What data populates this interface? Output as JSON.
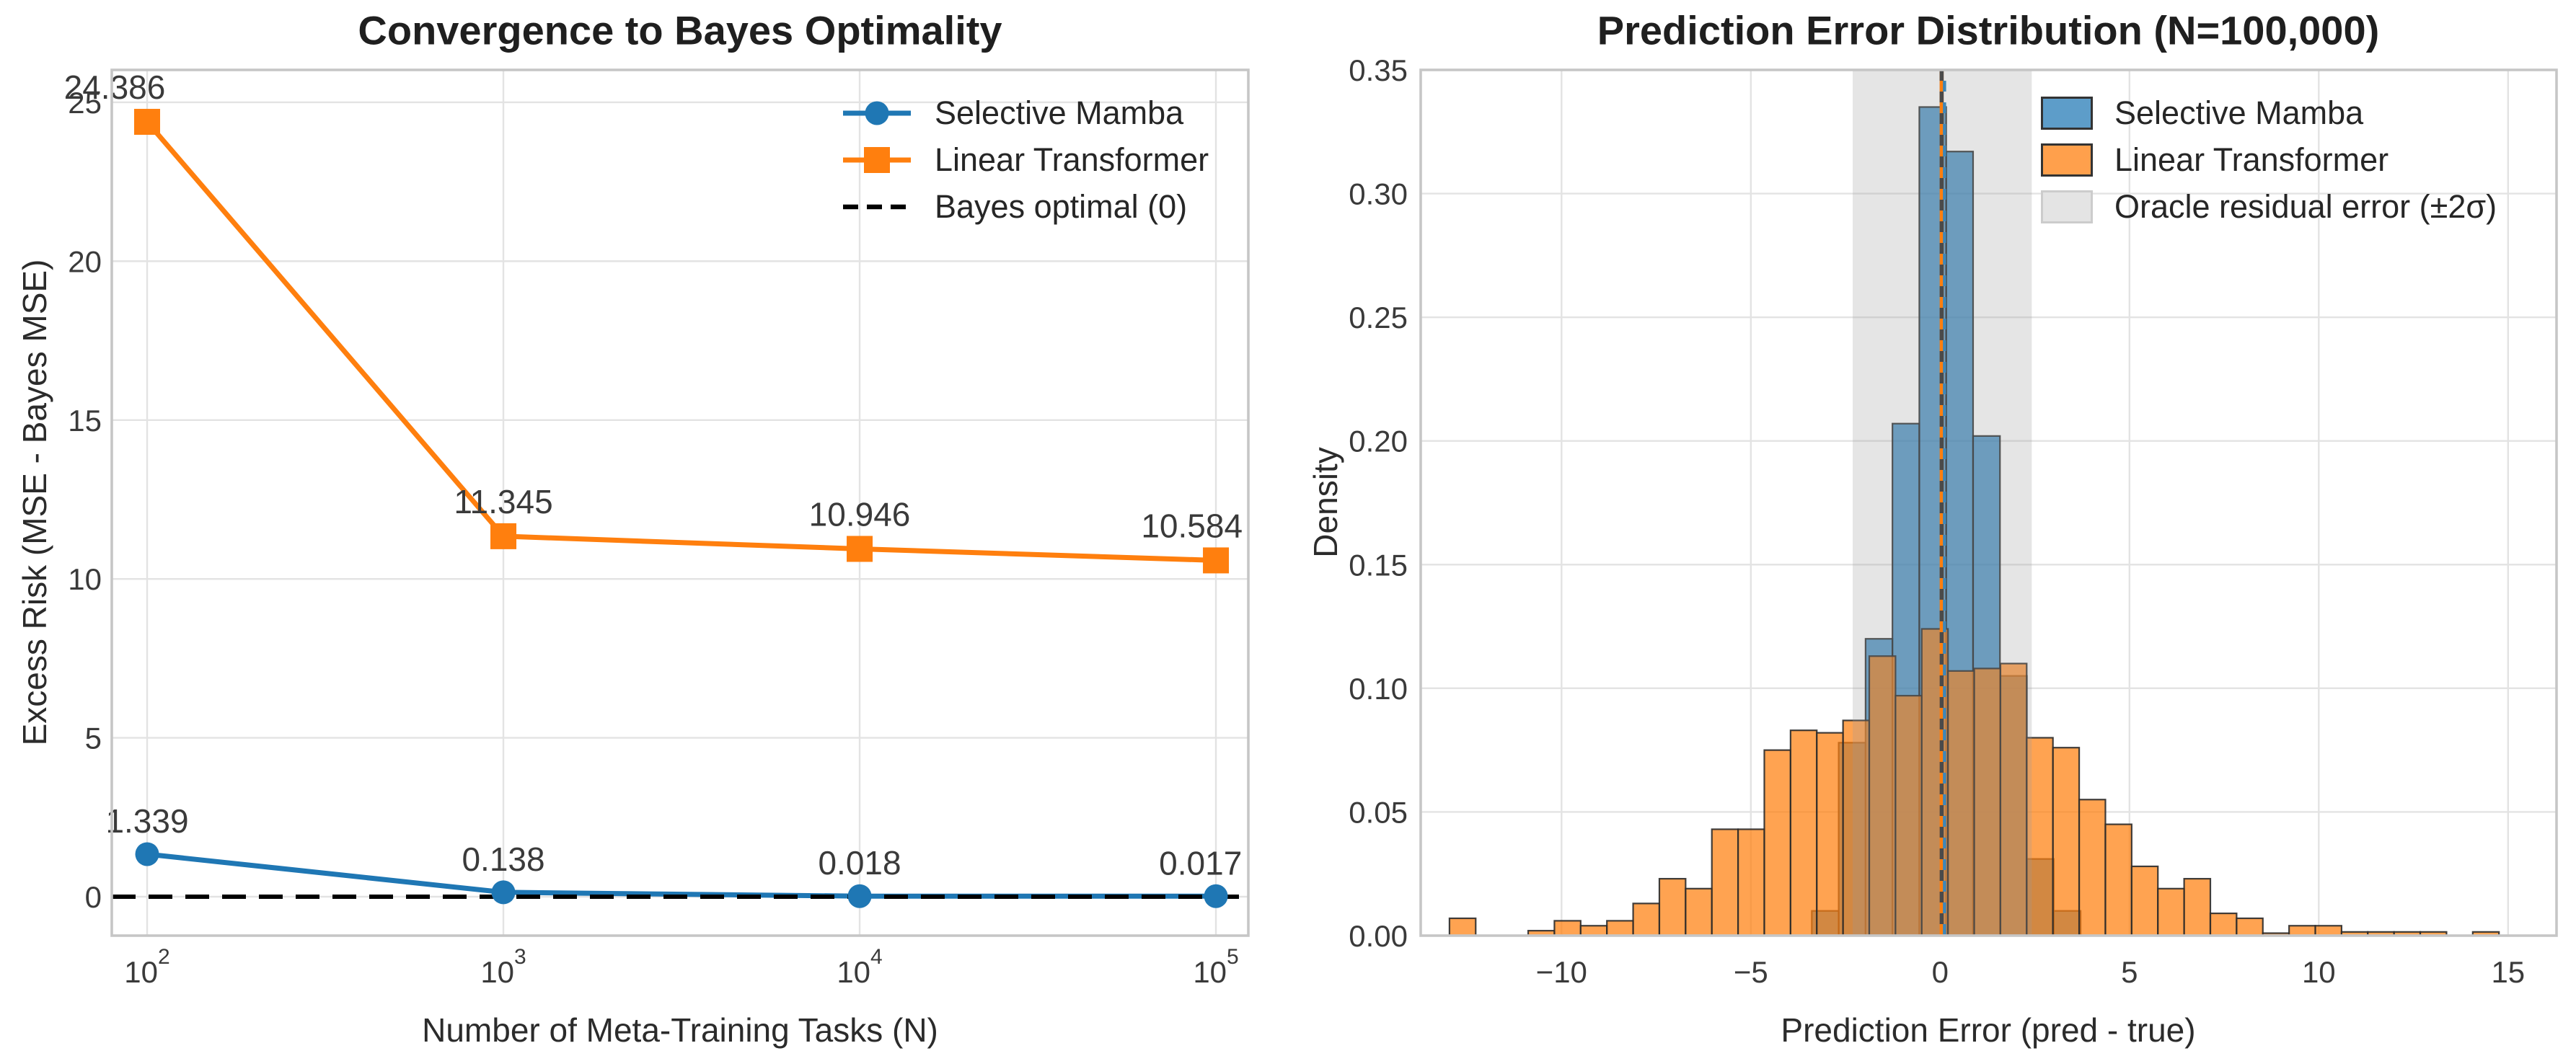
{
  "figure": {
    "background": "#ffffff",
    "grid_color": "#e3e3e3",
    "spine_color": "#c6c6c6",
    "tick_color": "#3a3a3a"
  },
  "chart_data": [
    {
      "type": "line",
      "title": "Convergence to Bayes Optimality",
      "xlabel": "Number of Meta-Training Tasks (N)",
      "ylabel": "Excess Risk (MSE - Bayes MSE)",
      "xscale": "log",
      "x": [
        100,
        1000,
        10000,
        100000
      ],
      "xtick_labels": [
        {
          "mantissa": "10",
          "exp": "2"
        },
        {
          "mantissa": "10",
          "exp": "3"
        },
        {
          "mantissa": "10",
          "exp": "4"
        },
        {
          "mantissa": "10",
          "exp": "5"
        }
      ],
      "yticks": [
        0,
        5,
        10,
        15,
        20,
        25
      ],
      "ytick_labels": [
        "0",
        "5",
        "10",
        "15",
        "20",
        "25"
      ],
      "xlim_log10": [
        1.9008,
        5.091
      ],
      "ylim": [
        -1.225,
        26.02
      ],
      "grid": true,
      "legend_position": "upper right",
      "series": [
        {
          "name": "Selective Mamba",
          "color": "#1f77b4",
          "marker": "circle",
          "values": [
            1.339,
            0.138,
            0.018,
            0.017
          ],
          "point_labels": [
            "1.339",
            "0.138",
            "0.018",
            "0.017"
          ]
        },
        {
          "name": "Linear Transformer",
          "color": "#ff7f0e",
          "marker": "square",
          "values": [
            24.386,
            11.345,
            10.946,
            10.584
          ],
          "point_labels": [
            "24.386",
            "11.345",
            "10.946",
            "10.584"
          ]
        }
      ],
      "reference_line": {
        "y": 0,
        "label": "Bayes optimal (0)",
        "color": "#000000",
        "style": "dashed"
      }
    },
    {
      "type": "histogram",
      "title": "Prediction Error Distribution (N=100,000)",
      "xlabel": "Prediction Error (pred - true)",
      "ylabel": "Density",
      "xlim": [
        -13.72,
        16.28
      ],
      "ylim": [
        0,
        0.35
      ],
      "xticks": [
        -10,
        -5,
        0,
        5,
        10,
        15
      ],
      "xtick_labels": [
        "−10",
        "−5",
        "0",
        "5",
        "10",
        "15"
      ],
      "yticks": [
        0,
        0.05,
        0.1,
        0.15,
        0.2,
        0.25,
        0.3,
        0.35
      ],
      "ytick_labels": [
        "0.00",
        "0.05",
        "0.10",
        "0.15",
        "0.20",
        "0.25",
        "0.30",
        "0.35"
      ],
      "grid": true,
      "legend_position": "upper right",
      "series": [
        {
          "name": "Selective Mamba",
          "color": "#1f77b4",
          "fill_opacity": 0.72,
          "bin_start": -3.39,
          "bin_width": 0.71,
          "densities": [
            0.01,
            0.078,
            0.12,
            0.207,
            0.335,
            0.317,
            0.202,
            0.105,
            0.031,
            0.01
          ]
        },
        {
          "name": "Linear Transformer",
          "color": "#ff7f0e",
          "fill_opacity": 0.72,
          "bin_start": -12.96,
          "bin_width": 0.693,
          "densities": [
            0.007,
            0,
            0,
            0.002,
            0.006,
            0.004,
            0.006,
            0.013,
            0.023,
            0.019,
            0.043,
            0.043,
            0.075,
            0.083,
            0.082,
            0.087,
            0.113,
            0.097,
            0.124,
            0.107,
            0.108,
            0.11,
            0.08,
            0.076,
            0.055,
            0.045,
            0.028,
            0.019,
            0.023,
            0.009,
            0.007,
            0.001,
            0.004,
            0.004,
            0.0015,
            0.0015,
            0.0015,
            0.0015,
            0,
            0.0015
          ]
        }
      ],
      "band": {
        "from": -2.31,
        "to": 2.42,
        "label": "Oracle residual error (±2σ)",
        "color": "#999999",
        "opacity": 0.26
      },
      "vlines": [
        {
          "x": 0.04,
          "color": "#ff7f0e",
          "style": "solid"
        },
        {
          "x": 0.04,
          "color": "#4a4a4a",
          "style": "dashed"
        },
        {
          "x": 0.115,
          "color": "#3f87b8",
          "style": "dashed"
        }
      ]
    }
  ]
}
